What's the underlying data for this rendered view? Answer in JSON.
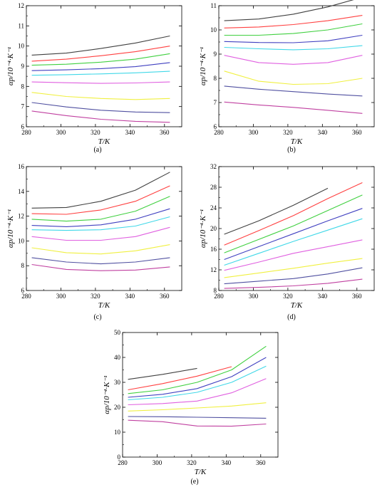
{
  "chart_data": [
    {
      "id": "a",
      "type": "line",
      "panel_label": "(a)",
      "xlabel": "T/K",
      "ylabel": "αp/10⁻⁴·K⁻¹",
      "xlim": [
        280,
        370
      ],
      "ylim": [
        6,
        12
      ],
      "xticks": [
        280,
        300,
        320,
        340,
        360
      ],
      "yticks": [
        6,
        7,
        8,
        9,
        10,
        11,
        12
      ],
      "x": [
        283.15,
        303.15,
        323.15,
        343.15,
        363.15
      ],
      "series": [
        {
          "color": "#404040",
          "values": [
            9.55,
            9.65,
            9.88,
            10.15,
            10.5
          ]
        },
        {
          "color": "#ff4040",
          "values": [
            9.25,
            9.35,
            9.52,
            9.72,
            10.0
          ]
        },
        {
          "color": "#40d040",
          "values": [
            9.05,
            9.1,
            9.2,
            9.35,
            9.62
          ]
        },
        {
          "color": "#4040c0",
          "values": [
            8.78,
            8.82,
            8.88,
            8.98,
            9.18
          ]
        },
        {
          "color": "#40d8e8",
          "values": [
            8.55,
            8.58,
            8.62,
            8.67,
            8.75
          ]
        },
        {
          "color": "#e060e0",
          "values": [
            8.22,
            8.18,
            8.15,
            8.17,
            8.22
          ]
        },
        {
          "color": "#f0f040",
          "values": [
            7.7,
            7.5,
            7.4,
            7.35,
            7.4
          ]
        },
        {
          "color": "#5050a0",
          "values": [
            7.2,
            6.98,
            6.82,
            6.73,
            6.7
          ]
        },
        {
          "color": "#c040a0",
          "values": [
            6.78,
            6.55,
            6.37,
            6.27,
            6.22
          ]
        }
      ]
    },
    {
      "id": "b",
      "type": "line",
      "panel_label": "(b)",
      "xlabel": "T/K",
      "ylabel": "αp/10⁻⁴·K⁻¹",
      "xlim": [
        280,
        370
      ],
      "ylim": [
        6,
        11
      ],
      "xticks": [
        280,
        300,
        320,
        340,
        360
      ],
      "yticks": [
        6,
        7,
        8,
        9,
        10,
        11
      ],
      "x": [
        283.15,
        303.15,
        323.15,
        343.15,
        363.15
      ],
      "series": [
        {
          "color": "#404040",
          "values": [
            10.38,
            10.45,
            10.65,
            10.95,
            11.35
          ]
        },
        {
          "color": "#ff4040",
          "values": [
            10.08,
            10.12,
            10.22,
            10.38,
            10.6
          ]
        },
        {
          "color": "#40d040",
          "values": [
            9.78,
            9.78,
            9.85,
            10.0,
            10.25
          ]
        },
        {
          "color": "#4040c0",
          "values": [
            9.52,
            9.48,
            9.47,
            9.55,
            9.78
          ]
        },
        {
          "color": "#40d8e8",
          "values": [
            9.28,
            9.22,
            9.18,
            9.22,
            9.35
          ]
        },
        {
          "color": "#e060e0",
          "values": [
            8.95,
            8.65,
            8.58,
            8.65,
            8.95
          ]
        },
        {
          "color": "#f0f040",
          "values": [
            8.3,
            7.88,
            7.75,
            7.78,
            8.0
          ]
        },
        {
          "color": "#5050a0",
          "values": [
            7.68,
            7.55,
            7.45,
            7.35,
            7.27
          ]
        },
        {
          "color": "#c040a0",
          "values": [
            7.02,
            6.9,
            6.8,
            6.68,
            6.55
          ]
        }
      ]
    },
    {
      "id": "c",
      "type": "line",
      "panel_label": "(c)",
      "xlabel": "T/K",
      "ylabel": "αp/10⁻⁴·K⁻¹",
      "xlim": [
        280,
        370
      ],
      "ylim": [
        6,
        16
      ],
      "xticks": [
        280,
        300,
        320,
        340,
        360
      ],
      "yticks": [
        6,
        8,
        10,
        12,
        14,
        16
      ],
      "x": [
        283.15,
        303.15,
        323.15,
        343.15,
        363.15
      ],
      "series": [
        {
          "color": "#404040",
          "values": [
            12.65,
            12.7,
            13.2,
            14.1,
            15.55
          ]
        },
        {
          "color": "#ff4040",
          "values": [
            12.2,
            12.15,
            12.5,
            13.2,
            14.45
          ]
        },
        {
          "color": "#40d040",
          "values": [
            11.75,
            11.6,
            11.75,
            12.4,
            13.6
          ]
        },
        {
          "color": "#4040c0",
          "values": [
            11.25,
            11.15,
            11.3,
            11.75,
            12.6
          ]
        },
        {
          "color": "#40d8e8",
          "values": [
            10.9,
            10.85,
            10.9,
            11.2,
            11.95
          ]
        },
        {
          "color": "#e060e0",
          "values": [
            10.35,
            10.05,
            10.05,
            10.35,
            11.1
          ]
        },
        {
          "color": "#f0f040",
          "values": [
            9.45,
            9.05,
            8.95,
            9.2,
            9.7
          ]
        },
        {
          "color": "#5050a0",
          "values": [
            8.65,
            8.3,
            8.15,
            8.3,
            8.65
          ]
        },
        {
          "color": "#c040a0",
          "values": [
            8.1,
            7.7,
            7.6,
            7.65,
            7.9
          ]
        }
      ]
    },
    {
      "id": "d",
      "type": "line",
      "panel_label": "(d)",
      "xlabel": "T/K",
      "ylabel": "αp/10⁻⁴·K⁻¹",
      "xlim": [
        280,
        370
      ],
      "ylim": [
        8,
        32
      ],
      "xticks": [
        280,
        300,
        320,
        340,
        360
      ],
      "yticks": [
        8,
        12,
        16,
        20,
        24,
        28,
        32
      ],
      "x": [
        283.15,
        303.15,
        323.15,
        343.15,
        363.15
      ],
      "series": [
        {
          "color": "#404040",
          "values": [
            18.9,
            21.5,
            24.5,
            27.8,
            null
          ]
        },
        {
          "color": "#ff4040",
          "values": [
            16.8,
            19.6,
            22.5,
            25.8,
            28.9
          ]
        },
        {
          "color": "#40d040",
          "values": [
            15.3,
            17.9,
            20.5,
            23.5,
            26.5
          ]
        },
        {
          "color": "#4040c0",
          "values": [
            14.0,
            16.5,
            19.0,
            21.5,
            23.9
          ]
        },
        {
          "color": "#40d8e8",
          "values": [
            12.9,
            15.2,
            17.5,
            19.7,
            21.9
          ]
        },
        {
          "color": "#e060e0",
          "values": [
            11.9,
            13.5,
            15.2,
            16.5,
            17.8
          ]
        },
        {
          "color": "#f0f040",
          "values": [
            10.5,
            11.4,
            12.3,
            13.3,
            14.2
          ]
        },
        {
          "color": "#5050a0",
          "values": [
            9.3,
            9.8,
            10.3,
            11.2,
            12.4
          ]
        },
        {
          "color": "#c040a0",
          "values": [
            8.4,
            8.6,
            8.9,
            9.4,
            10.2
          ]
        }
      ]
    },
    {
      "id": "e",
      "type": "line",
      "panel_label": "(e)",
      "xlabel": "T/K",
      "ylabel": "αp/10⁻⁴·K⁻¹",
      "xlim": [
        280,
        370
      ],
      "ylim": [
        0,
        50
      ],
      "xticks": [
        280,
        300,
        320,
        340,
        360
      ],
      "yticks": [
        0,
        10,
        20,
        30,
        40,
        50
      ],
      "x": [
        283.15,
        303.15,
        323.15,
        343.15,
        363.15
      ],
      "series": [
        {
          "color": "#404040",
          "values": [
            31.2,
            33.2,
            35.6,
            null,
            null
          ]
        },
        {
          "color": "#ff4040",
          "values": [
            27.0,
            29.5,
            32.5,
            36.3,
            null
          ]
        },
        {
          "color": "#40d040",
          "values": [
            25.5,
            27.0,
            30.0,
            35.0,
            44.5
          ]
        },
        {
          "color": "#4040c0",
          "values": [
            24.0,
            25.2,
            27.5,
            32.3,
            40.0
          ]
        },
        {
          "color": "#40d8e8",
          "values": [
            23.0,
            24.0,
            26.0,
            30.0,
            36.5
          ]
        },
        {
          "color": "#e060e0",
          "values": [
            21.0,
            21.5,
            22.5,
            25.8,
            31.5
          ]
        },
        {
          "color": "#f0f040",
          "values": [
            18.5,
            19.0,
            19.7,
            20.5,
            21.8
          ]
        },
        {
          "color": "#5050a0",
          "values": [
            16.3,
            16.2,
            16.0,
            15.8,
            15.6
          ]
        },
        {
          "color": "#c040a0",
          "values": [
            14.8,
            14.2,
            12.5,
            12.4,
            13.3
          ]
        }
      ]
    }
  ]
}
